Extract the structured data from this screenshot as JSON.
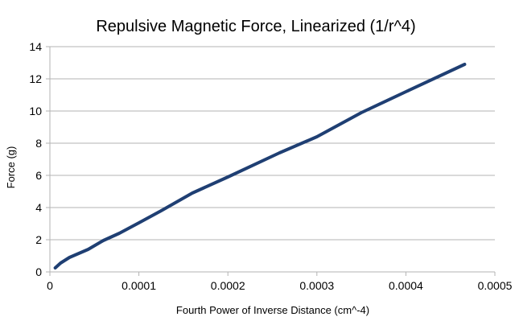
{
  "chart_data": {
    "type": "line",
    "title": "Repulsive Magnetic Force, Linearized (1/r^4)",
    "xlabel": "Fourth Power of Inverse Distance (cm^-4)",
    "ylabel": "Force (g)",
    "xlim": [
      0,
      0.0005
    ],
    "ylim": [
      0,
      14
    ],
    "x_ticks": [
      "0",
      "0.0001",
      "0.0002",
      "0.0003",
      "0.0004",
      "0.0005"
    ],
    "y_ticks": [
      "0",
      "2",
      "4",
      "6",
      "8",
      "10",
      "12",
      "14"
    ],
    "grid": "horizontal",
    "legend": "none",
    "series_color": "#1f3f73",
    "series": [
      {
        "x": [
          6e-06,
          1.2e-05,
          2.2e-05,
          4.3e-05,
          6e-05,
          7.8e-05,
          0.0001,
          0.000125,
          0.00016,
          0.0002,
          0.000258,
          0.0003,
          0.00035,
          0.0004,
          0.000466
        ],
        "values": [
          0.25,
          0.55,
          0.9,
          1.4,
          1.95,
          2.4,
          3.05,
          3.8,
          4.9,
          5.9,
          7.4,
          8.4,
          9.9,
          11.2,
          12.9
        ]
      }
    ]
  }
}
